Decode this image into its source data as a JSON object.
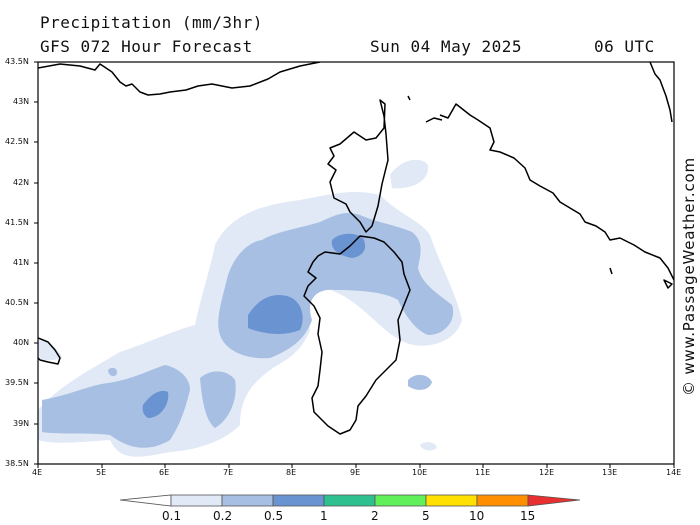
{
  "header": {
    "title": "Precipitation (mm/3hr)",
    "subtitle": "GFS 072 Hour Forecast",
    "date": "Sun 04 May 2025",
    "time": "06 UTC"
  },
  "map": {
    "lat_labels": [
      "43.5N",
      "43N",
      "42.5N",
      "42N",
      "41.5N",
      "41N",
      "40.5N",
      "40N",
      "39.5N",
      "39N",
      "38.5N"
    ],
    "lon_labels": [
      "4E",
      "5E",
      "6E",
      "7E",
      "8E",
      "9E",
      "10E",
      "11E",
      "12E",
      "13E",
      "14E"
    ],
    "extent": {
      "lon_min": 4,
      "lon_max": 14,
      "lat_min": 38.5,
      "lat_max": 43.5
    },
    "coast_color": "#000000"
  },
  "credit": "© www.PassageWeather.com",
  "legend": {
    "labels": [
      "0.1",
      "0.2",
      "0.5",
      "1",
      "2",
      "5",
      "10",
      "15"
    ],
    "colors": [
      "#ffffff",
      "#e1e9f6",
      "#a7bfe2",
      "#6a93d2",
      "#2fc08f",
      "#62f05a",
      "#ffe000",
      "#ff8f00",
      "#e83030"
    ]
  }
}
